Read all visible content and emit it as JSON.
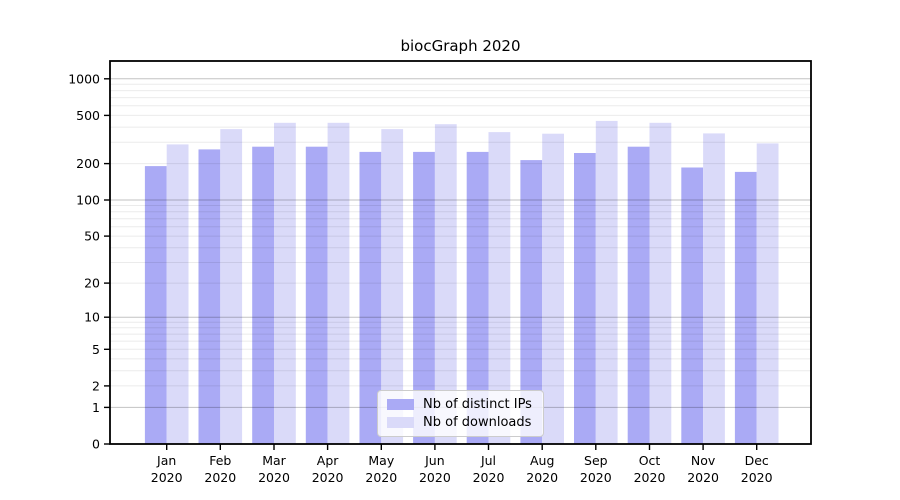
{
  "figure": {
    "title": "biocGraph 2020"
  },
  "chart_data": {
    "type": "bar",
    "title": "biocGraph 2020",
    "xlabel": "",
    "ylabel": "",
    "categories": [
      "Jan",
      "Feb",
      "Mar",
      "Apr",
      "May",
      "Jun",
      "Jul",
      "Aug",
      "Sep",
      "Oct",
      "Nov",
      "Dec"
    ],
    "x_year_label": "2020",
    "series": [
      {
        "name": "Nb of distinct IPs",
        "color": "#aaaaf5",
        "values": [
          191,
          262,
          276,
          276,
          250,
          250,
          250,
          214,
          245,
          276,
          186,
          171
        ]
      },
      {
        "name": "Nb of downloads",
        "color": "#dadaf9",
        "values": [
          288,
          385,
          434,
          434,
          385,
          423,
          364,
          353,
          450,
          434,
          355,
          294
        ]
      }
    ],
    "y_scale": "log10(1+x)",
    "y_ticks_labeled": [
      0,
      1,
      2,
      5,
      10,
      20,
      50,
      100,
      200,
      500,
      1000
    ],
    "y_major_gridlines": [
      1,
      10,
      100,
      1000
    ],
    "y_axis_max": 1400,
    "grid": true,
    "legend_position": "lower center",
    "colors": {
      "bar_distinct_ips": "#aaaaf5",
      "bar_downloads": "#dadaf9",
      "major_grid": "rgba(0,0,0,0.24)",
      "minor_grid": "rgba(0,0,0,0.08)",
      "axis": "#000000",
      "text": "#000000",
      "legend_border": "#cccccc"
    }
  }
}
